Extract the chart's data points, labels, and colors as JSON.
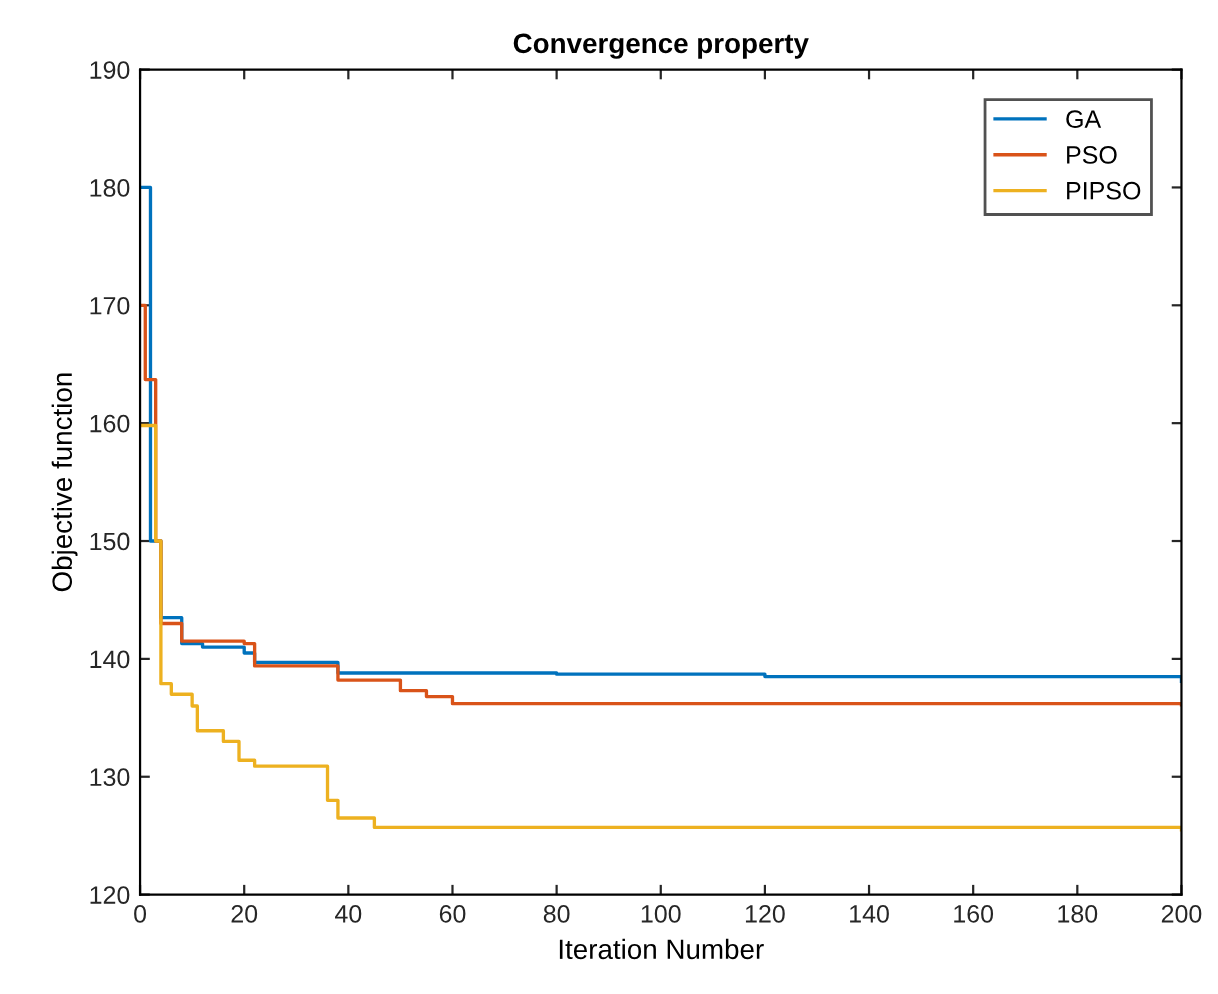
{
  "chart_data": {
    "type": "step",
    "title": "Convergence property",
    "xlabel": "Iteration Number",
    "ylabel": "Objective function",
    "xlim": [
      0,
      200
    ],
    "ylim": [
      120,
      190
    ],
    "xticks": [
      0,
      20,
      40,
      60,
      80,
      100,
      120,
      140,
      160,
      180,
      200
    ],
    "yticks": [
      120,
      130,
      140,
      150,
      160,
      170,
      180,
      190
    ],
    "legend": "top right",
    "grid": false,
    "series": [
      {
        "name": "GA",
        "color": "#0072bd",
        "x": [
          0,
          2,
          4,
          8,
          12,
          20,
          22,
          36,
          38,
          80,
          120,
          200
        ],
        "values": [
          180,
          150,
          143.5,
          141.3,
          141,
          140.5,
          139.7,
          139.7,
          138.8,
          138.7,
          138.5,
          138.1
        ]
      },
      {
        "name": "PSO",
        "color": "#d95319",
        "x": [
          0,
          1,
          3,
          4,
          8,
          20,
          22,
          36,
          38,
          50,
          55,
          60,
          200
        ],
        "values": [
          170,
          163.7,
          150,
          143,
          141.5,
          141.3,
          139.4,
          139.4,
          138.2,
          137.3,
          136.8,
          136.2,
          136.1
        ]
      },
      {
        "name": "PIPSO",
        "color": "#edb120",
        "x": [
          0,
          3,
          4,
          6,
          10,
          11,
          16,
          19,
          22,
          33,
          36,
          38,
          45,
          200
        ],
        "values": [
          159.8,
          150,
          137.9,
          137,
          136,
          133.9,
          133,
          131.4,
          130.9,
          130.9,
          128,
          126.5,
          125.7,
          125.5
        ]
      }
    ]
  }
}
